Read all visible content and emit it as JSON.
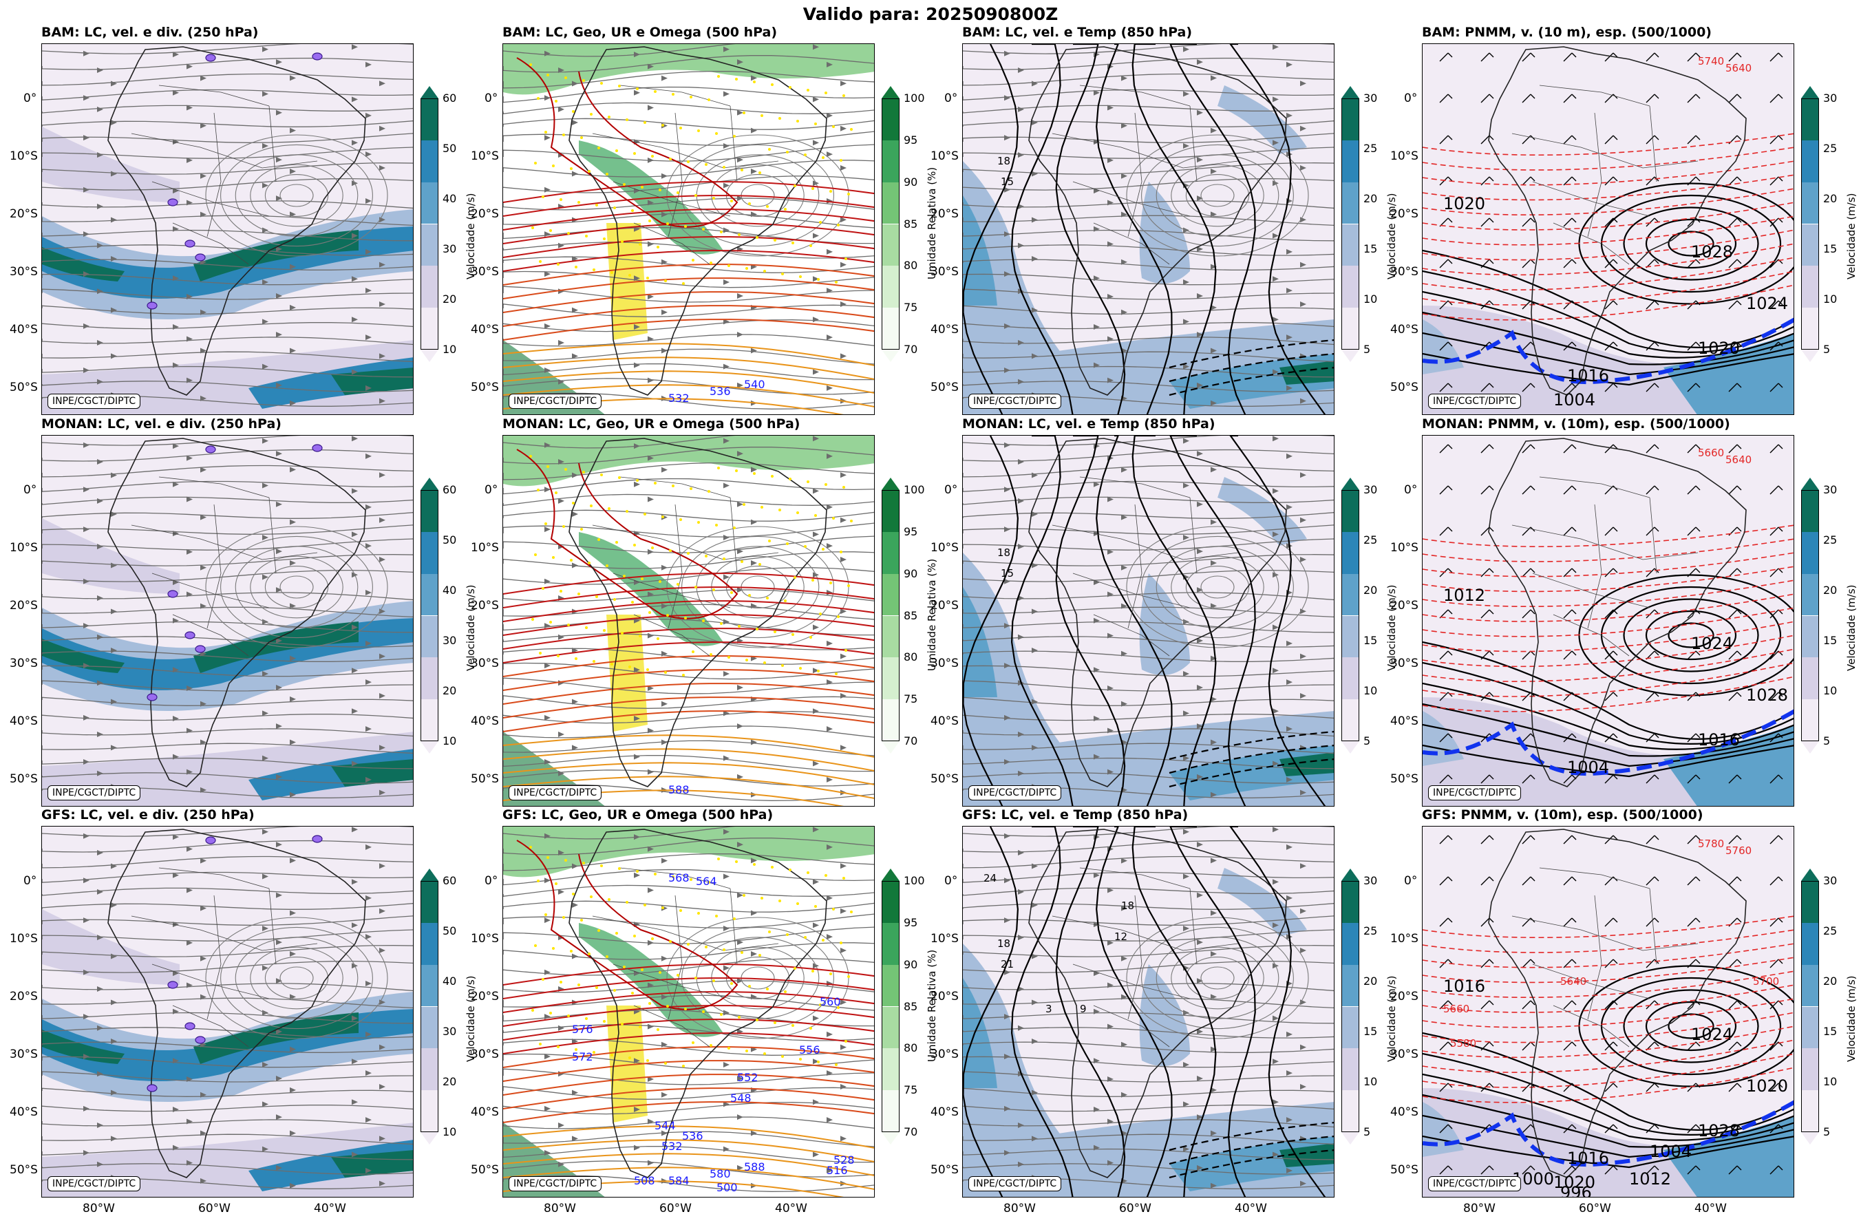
{
  "suptitle": "Valido para: 2025090800Z",
  "panels": [
    {
      "title": "BAM: LC, vel. e div. (250 hPa)",
      "type": "wind250",
      "cbar": "c1"
    },
    {
      "title": "BAM: LC, Geo, UR e Omega (500 hPa)",
      "type": "geo500",
      "cbar": "c2"
    },
    {
      "title": "BAM: LC, vel. e Temp (850 hPa)",
      "type": "temp850",
      "cbar": "c3"
    },
    {
      "title": "BAM: PNMM, v. (10 m), esp. (500/1000)",
      "type": "pnmm",
      "cbar": "c4"
    },
    {
      "title": "MONAN: LC, vel. e div. (250 hPa)",
      "type": "wind250",
      "cbar": "c1"
    },
    {
      "title": "MONAN: LC, Geo, UR e Omega (500 hPa)",
      "type": "geo500",
      "cbar": "c2"
    },
    {
      "title": "MONAN: LC, vel. e Temp (850 hPa)",
      "type": "temp850",
      "cbar": "c3"
    },
    {
      "title": "MONAN: PNMM, v. (10m), esp. (500/1000)",
      "type": "pnmm",
      "cbar": "c4"
    },
    {
      "title": "GFS: LC, vel. e div. (250 hPa)",
      "type": "wind250",
      "cbar": "c1"
    },
    {
      "title": "GFS: LC, Geo, UR e Omega (500 hPa)",
      "type": "geo500",
      "cbar": "c2"
    },
    {
      "title": "GFS: LC, vel. e Temp (850 hPa)",
      "type": "temp850",
      "cbar": "c3"
    },
    {
      "title": "GFS: PNMM, v. (10m), esp. (500/1000)",
      "type": "pnmm",
      "cbar": "c4"
    }
  ],
  "badge": "INPE/CGCT/DIPTC",
  "lat_ticks": [
    "0°",
    "10°S",
    "20°S",
    "30°S",
    "40°S",
    "50°S"
  ],
  "lon_ticks": [
    "80°W",
    "60°W",
    "40°W"
  ],
  "colorbars": {
    "c1": {
      "label": "Velocidade (m/s)",
      "ticks": [
        "60",
        "50",
        "40",
        "30",
        "20",
        "10"
      ],
      "colors": [
        "#f2ecf5",
        "#d6d0e6",
        "#a6bddb",
        "#5fa2ca",
        "#2c86b8",
        "#0d6e5b"
      ]
    },
    "c2": {
      "label": "Umidade Relativa (%)",
      "ticks": [
        "100",
        "95",
        "90",
        "85",
        "80",
        "75",
        "70"
      ],
      "colors": [
        "#f5fbf3",
        "#d5efcf",
        "#a8dca2",
        "#74c476",
        "#3ba55c",
        "#12783a"
      ]
    },
    "c3": {
      "label": "Velocidade (m/s)",
      "ticks": [
        "30",
        "25",
        "20",
        "15",
        "10",
        "5"
      ],
      "colors": [
        "#f2ecf5",
        "#d6d0e6",
        "#a6bddb",
        "#5fa2ca",
        "#2c86b8",
        "#0d6e5b"
      ]
    },
    "c4": {
      "label": "Velocidade (m/s)",
      "ticks": [
        "30",
        "25",
        "20",
        "15",
        "10",
        "5"
      ],
      "colors": [
        "#f2ecf5",
        "#d6d0e6",
        "#a6bddb",
        "#5fa2ca",
        "#2c86b8",
        "#0d6e5b"
      ]
    }
  },
  "map_labels": {
    "geo_bam": [
      "532",
      "536",
      "540"
    ],
    "geo_monan": [
      "588"
    ],
    "geo_gfs": [
      "584",
      "580",
      "588",
      "576",
      "572",
      "568",
      "564",
      "560",
      "556",
      "552",
      "548",
      "544",
      "536",
      "532",
      "528",
      "516",
      "508",
      "500"
    ],
    "temp_bam": [
      "18",
      "15"
    ],
    "temp_gfs": [
      "18",
      "21",
      "24",
      "18",
      "12",
      "9",
      "3"
    ],
    "pnmm_bam": [
      "1020",
      "1028",
      "1024",
      "1020",
      "1016",
      "1004"
    ],
    "pnmm_monan": [
      "1012",
      "1024",
      "1028",
      "1016",
      "1004"
    ],
    "pnmm_gfs": [
      "1016",
      "1024",
      "1020",
      "1028",
      "1016",
      "1020",
      "1012",
      "1004",
      "1000",
      "996"
    ],
    "thk_bam": [
      "5640",
      "5740"
    ],
    "thk_monan": [
      "5640",
      "5660"
    ],
    "thk_gfs": [
      "5760",
      "5780",
      "5700",
      "5660",
      "5640",
      "5580"
    ]
  }
}
